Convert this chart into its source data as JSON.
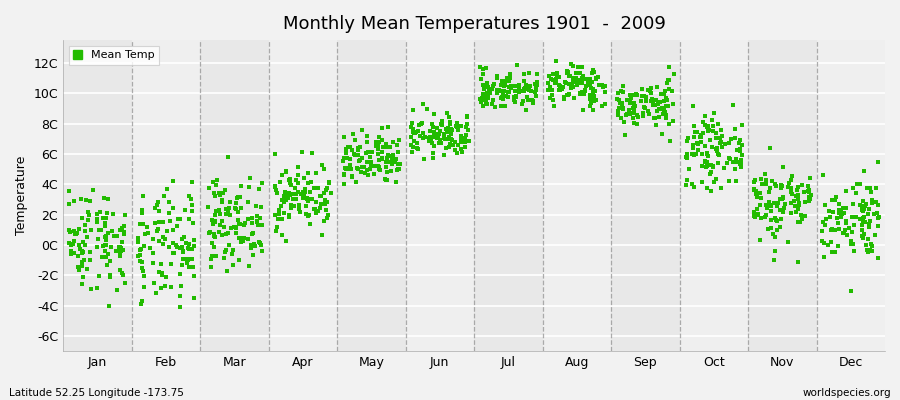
{
  "title": "Monthly Mean Temperatures 1901  -  2009",
  "ylabel": "Temperature",
  "xlabel": "",
  "subtitle_left": "Latitude 52.25 Longitude -173.75",
  "subtitle_right": "worldspecies.org",
  "yticks": [
    -6,
    -4,
    -2,
    0,
    2,
    4,
    6,
    8,
    10,
    12
  ],
  "ytick_labels": [
    "-6C",
    "-4C",
    "-2C",
    "0C",
    "2C",
    "4C",
    "6C",
    "8C",
    "10C",
    "12C"
  ],
  "ylim": [
    -7.0,
    13.5
  ],
  "months": [
    "Jan",
    "Feb",
    "Mar",
    "Apr",
    "May",
    "Jun",
    "Jul",
    "Aug",
    "Sep",
    "Oct",
    "Nov",
    "Dec"
  ],
  "dot_color": "#22BB00",
  "background_color": "#f2f2f2",
  "band_colors": [
    "#e8e8e8",
    "#efefef"
  ],
  "legend_label": "Mean Temp",
  "monthly_means": [
    0.4,
    -0.3,
    1.5,
    3.2,
    5.5,
    7.2,
    10.2,
    10.5,
    9.2,
    6.2,
    2.8,
    1.8
  ],
  "monthly_stds": [
    1.7,
    1.9,
    1.4,
    1.1,
    0.9,
    0.7,
    0.65,
    0.7,
    0.8,
    1.1,
    1.3,
    1.4
  ],
  "n_years": 109,
  "seed": 42,
  "title_fontsize": 13,
  "axis_fontsize": 9,
  "legend_fontsize": 8
}
